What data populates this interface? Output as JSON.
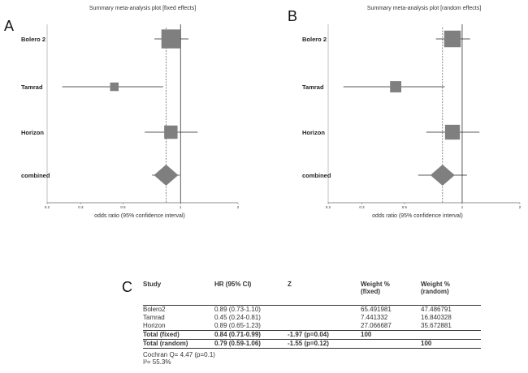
{
  "panel_labels": {
    "a": "A",
    "b": "B",
    "c": "C"
  },
  "chart_data": [
    {
      "type": "forest",
      "title": "Summary meta-analysis plot [fixed effects]",
      "xlabel": "odds ratio (95% confidence interval)",
      "scale": "log",
      "xlim": [
        0.2,
        2
      ],
      "ticks": [
        "0.2",
        "0.3",
        "0.5",
        "1",
        "2"
      ],
      "tick_values": [
        0.2,
        0.3,
        0.5,
        1,
        2
      ],
      "null_line": 1,
      "pooled_line": 0.84,
      "rows": [
        {
          "label": "Bolero 2",
          "est": 0.89,
          "lo": 0.73,
          "hi": 1.1,
          "weight": 65.491981
        },
        {
          "label": "Tamrad",
          "est": 0.45,
          "lo": 0.24,
          "hi": 0.81,
          "weight": 7.441332
        },
        {
          "label": "Horizon",
          "est": 0.89,
          "lo": 0.65,
          "hi": 1.23,
          "weight": 27.066687
        }
      ],
      "combined": {
        "label": "combined",
        "est": 0.84,
        "lo": 0.71,
        "hi": 0.99
      }
    },
    {
      "type": "forest",
      "title": "Summary meta-analysis plot [random effects]",
      "xlabel": "odds ratio (95% confidence interval)",
      "scale": "log",
      "xlim": [
        0.2,
        2
      ],
      "ticks": [
        "0.2",
        "0.3",
        "0.5",
        "1",
        "2"
      ],
      "tick_values": [
        0.2,
        0.3,
        0.5,
        1,
        2
      ],
      "null_line": 1,
      "pooled_line": 0.79,
      "rows": [
        {
          "label": "Bolero 2",
          "est": 0.89,
          "lo": 0.73,
          "hi": 1.1,
          "weight": 47.486791
        },
        {
          "label": "Tamrad",
          "est": 0.45,
          "lo": 0.24,
          "hi": 0.81,
          "weight": 16.840328
        },
        {
          "label": "Horizon",
          "est": 0.89,
          "lo": 0.65,
          "hi": 1.23,
          "weight": 35.672881
        }
      ],
      "combined": {
        "label": "combined",
        "est": 0.79,
        "lo": 0.59,
        "hi": 1.06
      }
    }
  ],
  "table": {
    "headers": {
      "study": "Study",
      "hr": "HR (95% CI)",
      "z": "Z",
      "weight_fixed_1": "Weight %",
      "weight_fixed_2": "(fixed)",
      "weight_random_1": "Weight %",
      "weight_random_2": "(random)"
    },
    "rows": [
      {
        "study": "Bolero2",
        "hr": "0.89 (0.73-1.10)",
        "z": "",
        "wf": "65.491981",
        "wr": "47.486791"
      },
      {
        "study": "Tamrad",
        "hr": "0.45 (0.24-0.81)",
        "z": "",
        "wf": "7.441332",
        "wr": "16.840328"
      },
      {
        "study": "Horizon",
        "hr": "0.89 (0.65-1.23)",
        "z": "",
        "wf": "27.066687",
        "wr": "35.672881"
      },
      {
        "study": "Total (fixed)",
        "hr": "0.84 (0.71-0.99)",
        "z": "-1.97 (p=0.04)",
        "wf": "100",
        "wr": ""
      },
      {
        "study": "Total (random)",
        "hr": "0.79 (0.59-1.06)",
        "z": "-1.55 (p=0.12)",
        "wf": "",
        "wr": "100"
      }
    ],
    "footnotes": {
      "cochran": "Cochran Q= 4.47 (p=0.1)",
      "i2": "I²= 55.3%"
    }
  }
}
